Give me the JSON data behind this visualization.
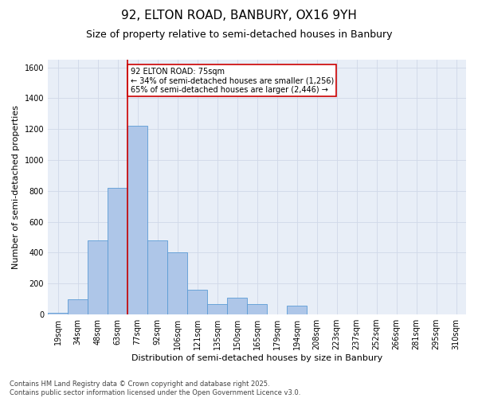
{
  "title_line1": "92, ELTON ROAD, BANBURY, OX16 9YH",
  "title_line2": "Size of property relative to semi-detached houses in Banbury",
  "xlabel": "Distribution of semi-detached houses by size in Banbury",
  "ylabel": "Number of semi-detached properties",
  "categories": [
    "19sqm",
    "34sqm",
    "48sqm",
    "63sqm",
    "77sqm",
    "92sqm",
    "106sqm",
    "121sqm",
    "135sqm",
    "150sqm",
    "165sqm",
    "179sqm",
    "194sqm",
    "208sqm",
    "223sqm",
    "237sqm",
    "252sqm",
    "266sqm",
    "281sqm",
    "295sqm",
    "310sqm"
  ],
  "values": [
    10,
    100,
    480,
    820,
    1220,
    480,
    400,
    160,
    65,
    110,
    65,
    0,
    55,
    0,
    0,
    0,
    0,
    0,
    0,
    0,
    0
  ],
  "bar_color": "#aec6e8",
  "bar_edge_color": "#5b9bd5",
  "vline_color": "#cc0000",
  "vline_xindex": 4,
  "annotation_text": "92 ELTON ROAD: 75sqm\n← 34% of semi-detached houses are smaller (1,256)\n65% of semi-detached houses are larger (2,446) →",
  "annotation_box_color": "#cc0000",
  "ylim": [
    0,
    1650
  ],
  "yticks": [
    0,
    200,
    400,
    600,
    800,
    1000,
    1200,
    1400,
    1600
  ],
  "grid_color": "#d0d8e8",
  "background_color": "#e8eef7",
  "footnote": "Contains HM Land Registry data © Crown copyright and database right 2025.\nContains public sector information licensed under the Open Government Licence v3.0.",
  "title_fontsize": 11,
  "subtitle_fontsize": 9,
  "label_fontsize": 8,
  "tick_fontsize": 7,
  "annot_fontsize": 7
}
